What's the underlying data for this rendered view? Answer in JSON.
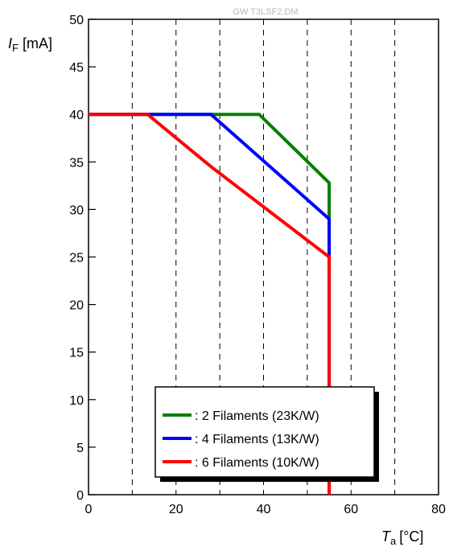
{
  "watermark": "GW T3LSF2.DM",
  "chart_data": {
    "type": "line",
    "title": "",
    "ylabel": {
      "symbol": "I",
      "subscript": "F",
      "unit": "[mA]"
    },
    "xlabel": {
      "symbol": "T",
      "subscript": "a",
      "unit": "[°C]"
    },
    "xlim": [
      0,
      80
    ],
    "ylim": [
      0,
      50
    ],
    "x_ticks": [
      0,
      20,
      40,
      60,
      80
    ],
    "y_ticks": [
      0,
      5,
      10,
      15,
      20,
      25,
      30,
      35,
      40,
      45,
      50
    ],
    "x_dashed_grid": [
      10,
      20,
      30,
      40,
      50,
      60,
      70
    ],
    "grid": "dashed vertical",
    "legend_position": "bottom-center",
    "series": [
      {
        "name": ": 2 Filaments (23K/W)",
        "color": "#008000",
        "points": [
          [
            0,
            40
          ],
          [
            39,
            40
          ],
          [
            55,
            32.8
          ],
          [
            55,
            0
          ]
        ]
      },
      {
        "name": ": 4 Filaments (13K/W)",
        "color": "#0000ff",
        "points": [
          [
            0,
            40
          ],
          [
            28,
            40
          ],
          [
            55,
            29
          ],
          [
            55,
            0
          ]
        ]
      },
      {
        "name": ": 6 Filaments (10K/W)",
        "color": "#ff0000",
        "points": [
          [
            0,
            40
          ],
          [
            13.5,
            40
          ],
          [
            28,
            34.5
          ],
          [
            55,
            25
          ],
          [
            55,
            0
          ]
        ]
      }
    ]
  }
}
